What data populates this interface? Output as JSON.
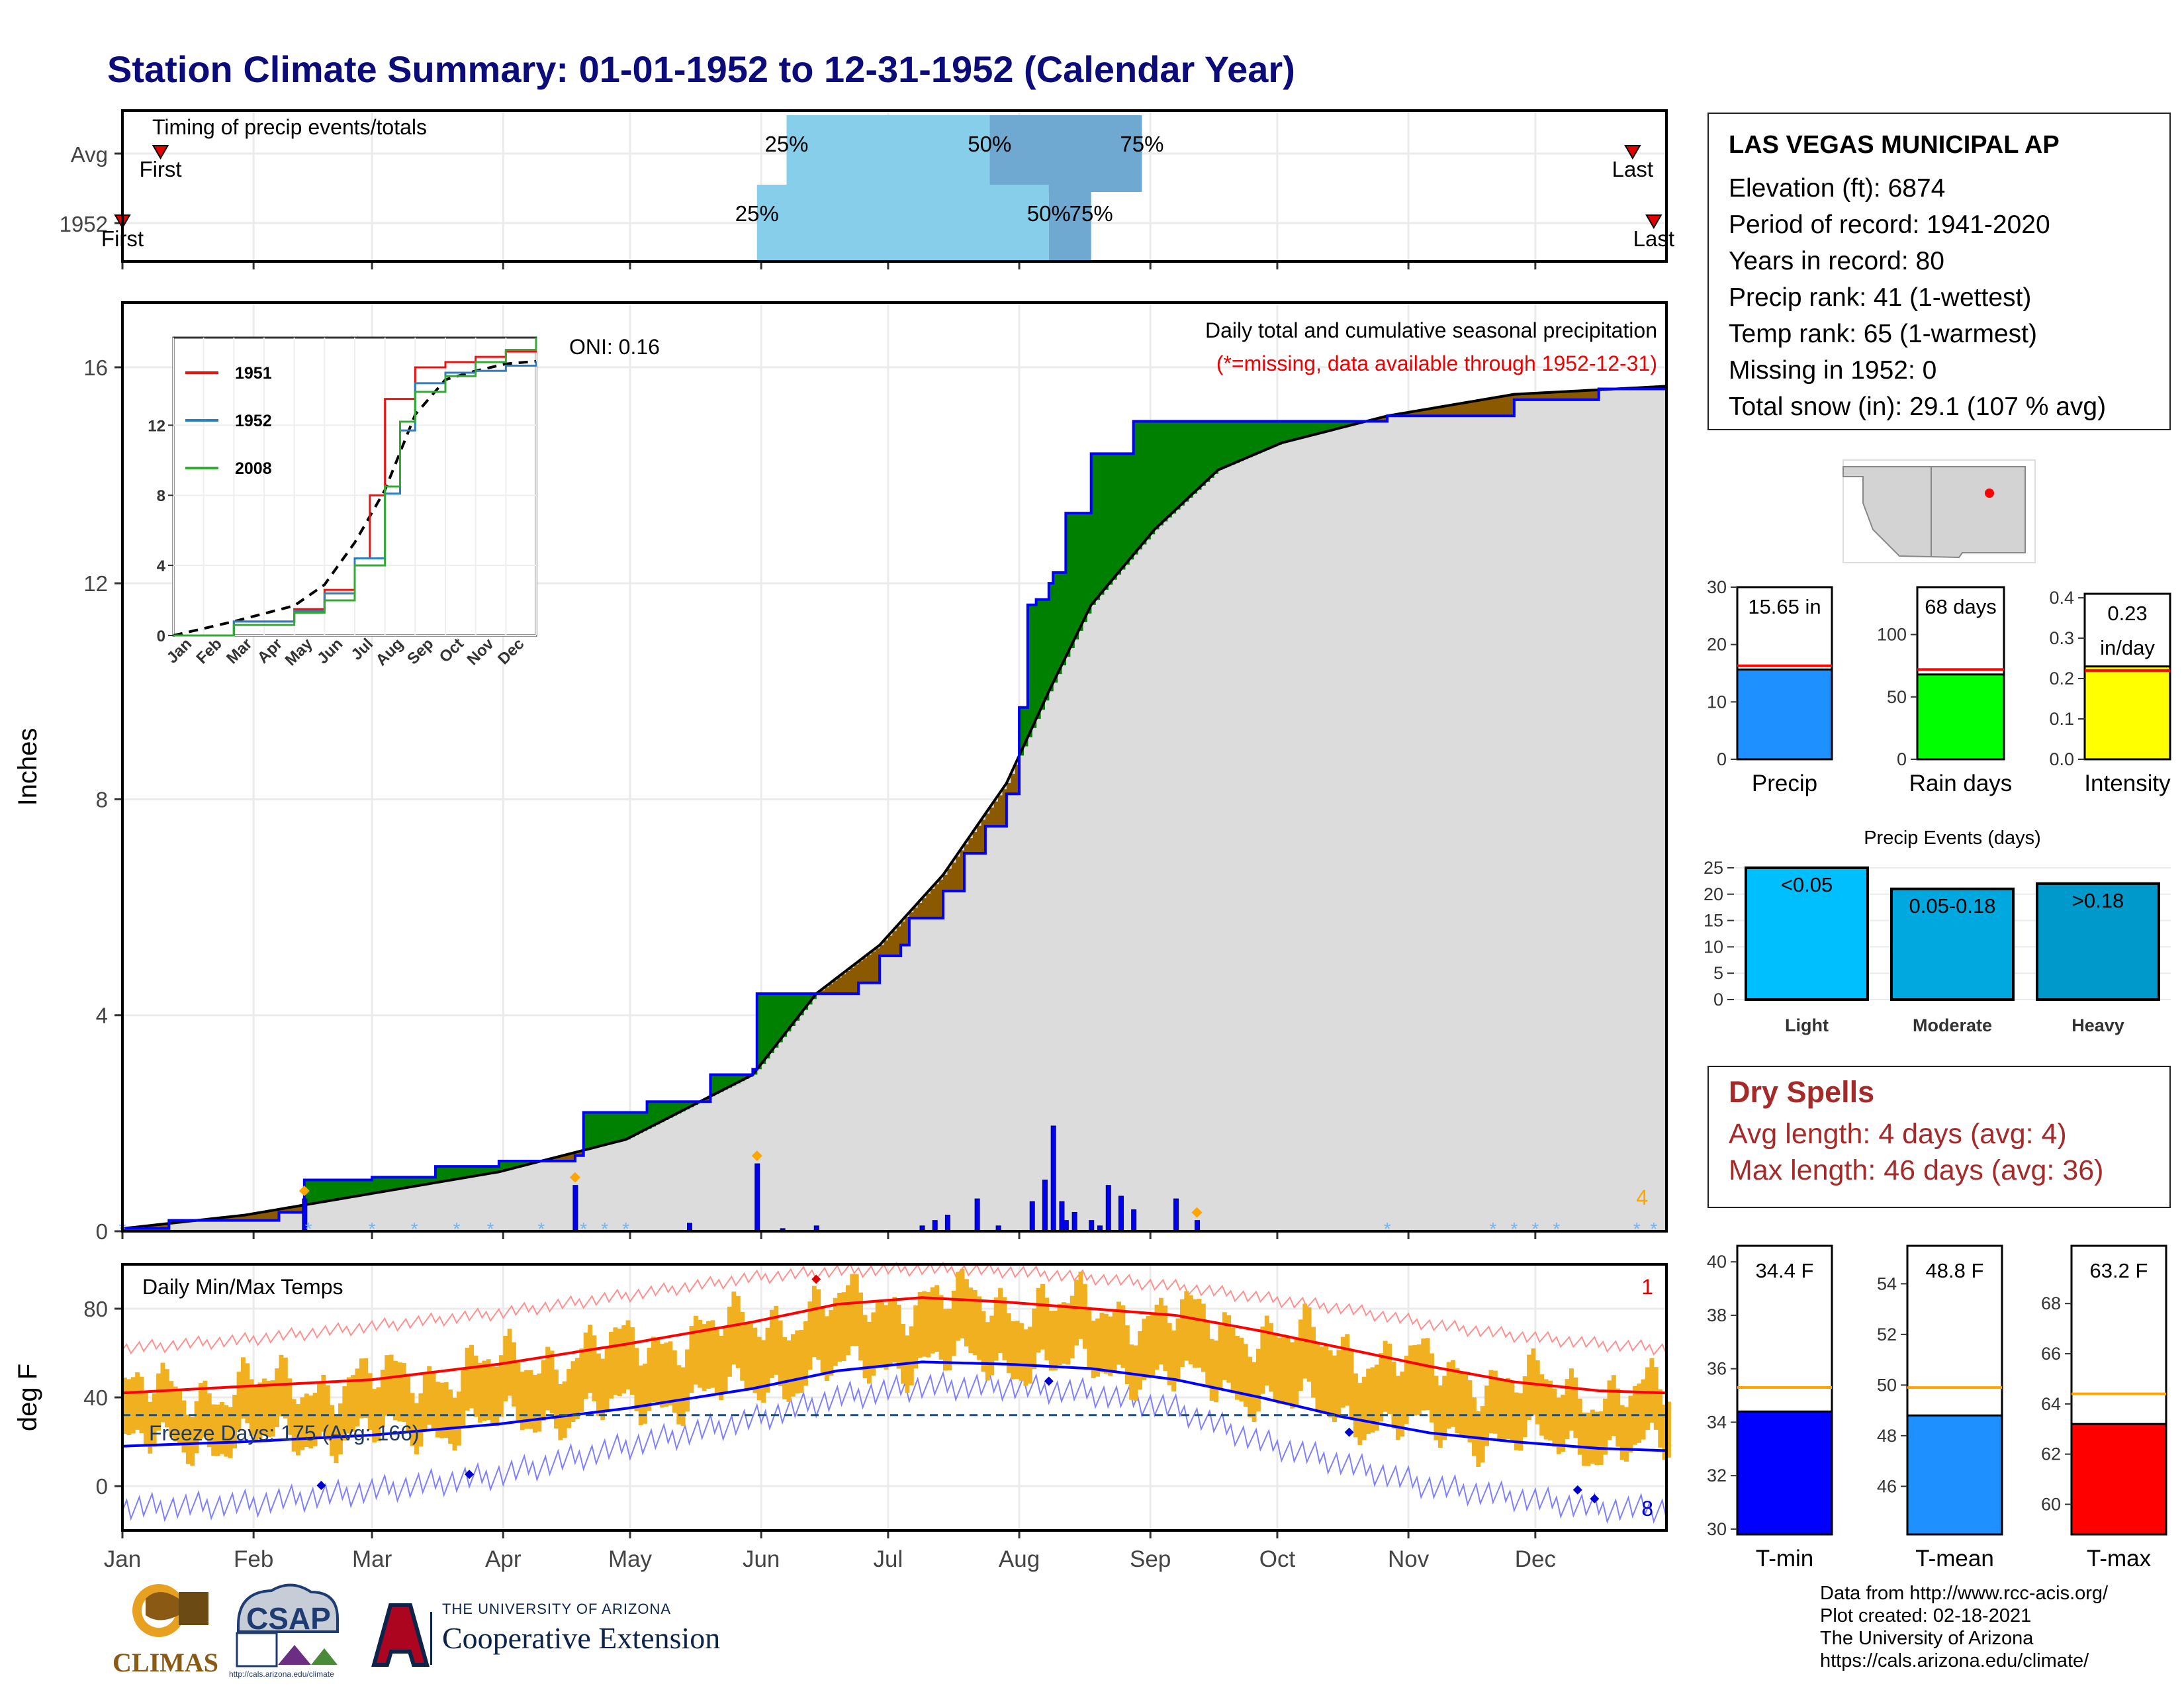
{
  "title": "Station Climate Summary: 01-01-1952 to 12-31-1952 (Calendar Year)",
  "station": {
    "name": "LAS VEGAS MUNICIPAL AP",
    "lines": [
      "Elevation (ft): 6874",
      "Period of record: 1941-2020",
      "Years in record: 80",
      "Precip rank: 41 (1-wettest)",
      "Temp rank: 65 (1-warmest)",
      "Missing in 1952: 0",
      "Total snow (in): 29.1 (107 % avg)"
    ]
  },
  "dry_spells": {
    "heading": "Dry Spells",
    "avg_length": "Avg length: 4 days (avg: 4)",
    "max_length": "Max length: 46 days (avg: 36)"
  },
  "credits": [
    "Data from http://www.rcc-acis.org/",
    "Plot created: 02-18-2021",
    "The University of Arizona",
    "https://cals.arizona.edu/climate/"
  ],
  "logos": {
    "climas": "CLIMAS",
    "csap": "CSAP",
    "csap_url": "http://cals.arizona.edu/climate",
    "coop_small": "THE UNIVERSITY OF ARIZONA",
    "coop_big": "Cooperative Extension"
  },
  "colors": {
    "title": "#0b0b7a",
    "precip_line": "#0000ff",
    "above_avg_fill": "#008000",
    "below_avg_fill": "#8b5a00",
    "climo_fill": "#dcdcdc",
    "bar_light_blue": "#87ceeb",
    "bar_mid_blue": "#6fa8d0",
    "temp_bar": "#f0b020",
    "max_line": "#ff0000",
    "min_line": "#0000ff",
    "dry_text": "#a52a2a"
  },
  "chart_data": [
    {
      "type": "bar",
      "title": "Timing of precip events/totals",
      "rows": [
        {
          "label": "Avg",
          "p25": "Jun 7",
          "p50": "Jul 25",
          "p75": "Aug 30",
          "first": "Jan 10",
          "last": "Dec 24",
          "first_label": "First",
          "last_label": "Last"
        },
        {
          "label": "1952",
          "p25": "May 31",
          "p50": "Aug 8",
          "p75": "Aug 18",
          "first": "Jan 1",
          "last": "Dec 29",
          "first_label": "First",
          "last_label": "Last"
        }
      ],
      "percentile_labels": [
        "25%",
        "50%",
        "75%"
      ],
      "x_ticks": [
        "Jan",
        "Feb",
        "Mar",
        "Apr",
        "May",
        "Jun",
        "Jul",
        "Aug",
        "Sep",
        "Oct",
        "Nov",
        "Dec"
      ]
    },
    {
      "type": "area",
      "title": "Daily total and cumulative seasonal precipitation",
      "subtitle": "(*=missing, data available through 1952-12-31)",
      "ylabel": "Inches",
      "ylim": [
        0,
        17.2
      ],
      "yticks": [
        0,
        4,
        8,
        12,
        16
      ],
      "x_ticks": [
        "Jan",
        "Feb",
        "Mar",
        "Apr",
        "May",
        "Jun",
        "Jul",
        "Aug",
        "Sep",
        "Oct",
        "Nov",
        "Dec"
      ],
      "oni": "ONI: 0.16",
      "corner_count": "4",
      "cumulative_1952": {
        "x_day": [
          1,
          12,
          38,
          44,
          60,
          75,
          90,
          108,
          110,
          125,
          135,
          140,
          150,
          151,
          165,
          175,
          180,
          185,
          187,
          195,
          200,
          205,
          210,
          213,
          215,
          217,
          220,
          221,
          224,
          230,
          240,
          250,
          270,
          300,
          330,
          350,
          366
        ],
        "y": [
          0.05,
          0.2,
          0.35,
          0.95,
          1.0,
          1.2,
          1.3,
          1.4,
          2.2,
          2.4,
          2.4,
          2.9,
          3.0,
          4.4,
          4.4,
          4.6,
          5.1,
          5.3,
          5.8,
          6.3,
          7.0,
          7.5,
          8.1,
          9.7,
          11.6,
          11.7,
          12.0,
          12.2,
          13.3,
          14.4,
          15.0,
          15.0,
          15.0,
          15.1,
          15.4,
          15.6,
          15.65
        ]
      },
      "climatology_avg": {
        "x_day": [
          1,
          30,
          60,
          90,
          120,
          150,
          165,
          180,
          195,
          210,
          220,
          230,
          245,
          260,
          275,
          300,
          330,
          366
        ],
        "y": [
          0.05,
          0.3,
          0.7,
          1.1,
          1.7,
          2.9,
          4.4,
          5.3,
          6.6,
          8.3,
          10.0,
          11.6,
          13.0,
          14.1,
          14.6,
          15.1,
          15.5,
          15.65
        ]
      },
      "daily_bars": {
        "x_day": [
          44,
          108,
          135,
          151,
          157,
          165,
          190,
          193,
          196,
          203,
          208,
          216,
          219,
          221,
          223,
          224,
          226,
          230,
          232,
          234,
          237,
          240,
          250,
          255
        ],
        "y": [
          0.6,
          0.85,
          0.15,
          1.25,
          0.05,
          0.1,
          0.1,
          0.2,
          0.3,
          0.6,
          0.1,
          0.55,
          0.95,
          1.95,
          0.55,
          0.2,
          0.35,
          0.2,
          0.1,
          0.85,
          0.65,
          0.4,
          0.6,
          0.2
        ]
      },
      "inset": {
        "type": "line",
        "yticks": [
          0,
          4,
          8,
          12
        ],
        "ylim": [
          0,
          17
        ],
        "x_ticks": [
          "Jan",
          "Feb",
          "Mar",
          "Apr",
          "May",
          "Jun",
          "Jul",
          "Aug",
          "Sep",
          "Oct",
          "Nov",
          "Dec"
        ],
        "series": [
          {
            "name": "1951",
            "color": "#ee1111",
            "x_month": [
              0,
              2,
              4,
              5,
              6,
              6.5,
              7,
              8,
              9,
              10,
              11,
              12
            ],
            "y": [
              0,
              0.8,
              1.5,
              2.6,
              4.4,
              8.0,
              13.5,
              15.3,
              15.6,
              15.9,
              16.2,
              16.5
            ]
          },
          {
            "name": "1952",
            "color": "#2f7fbf",
            "x_month": [
              0,
              2,
              4,
              5,
              6,
              7,
              7.5,
              8,
              9,
              10,
              11,
              12
            ],
            "y": [
              0,
              0.8,
              1.4,
              2.4,
              4.4,
              8.1,
              11.7,
              14.4,
              15.0,
              15.1,
              15.4,
              15.65
            ]
          },
          {
            "name": "2008",
            "color": "#33aa33",
            "x_month": [
              0,
              2,
              4,
              5,
              6,
              7,
              7.5,
              8,
              9,
              10,
              11,
              12
            ],
            "y": [
              0,
              0.6,
              1.3,
              2.0,
              4.0,
              8.5,
              12.2,
              13.9,
              14.8,
              15.6,
              16.3,
              17.0
            ]
          }
        ],
        "avg": {
          "x_month": [
            0,
            2,
            4,
            5,
            6,
            7,
            8,
            9,
            10,
            11,
            12
          ],
          "y": [
            0,
            0.8,
            1.7,
            2.9,
            5.3,
            8.3,
            12.6,
            14.6,
            15.1,
            15.5,
            15.65
          ]
        }
      }
    },
    {
      "type": "bar",
      "title": "Daily Min/Max Temps",
      "ylabel": "deg F",
      "yticks": [
        0,
        40,
        80
      ],
      "ylim": [
        -20,
        100
      ],
      "freeze_label": "Freeze Days: 175 (Avg: 166)",
      "freeze_line": 32,
      "record_highs": "1",
      "record_lows": "8",
      "x_ticks": [
        "Jan",
        "Feb",
        "Mar",
        "Apr",
        "May",
        "Jun",
        "Jul",
        "Aug",
        "Sep",
        "Oct",
        "Nov",
        "Dec"
      ],
      "normal_max": {
        "x_day": [
          1,
          30,
          60,
          90,
          120,
          150,
          170,
          190,
          210,
          230,
          250,
          270,
          290,
          310,
          330,
          350,
          366
        ],
        "y": [
          42,
          45,
          48,
          55,
          64,
          74,
          82,
          85,
          83,
          80,
          77,
          70,
          62,
          54,
          47,
          43,
          42
        ]
      },
      "normal_min": {
        "x_day": [
          1,
          30,
          60,
          90,
          120,
          150,
          170,
          190,
          210,
          230,
          250,
          270,
          290,
          310,
          330,
          350,
          366
        ],
        "y": [
          18,
          20,
          23,
          28,
          35,
          44,
          52,
          56,
          55,
          53,
          48,
          40,
          31,
          24,
          20,
          17,
          16
        ]
      },
      "record_max": {
        "x_day": [
          1,
          30,
          60,
          90,
          120,
          150,
          170,
          190,
          210,
          230,
          250,
          270,
          290,
          310,
          330,
          350,
          366
        ],
        "y": [
          62,
          66,
          72,
          78,
          86,
          94,
          97,
          98,
          97,
          94,
          90,
          85,
          80,
          73,
          68,
          64,
          62
        ]
      },
      "record_min": {
        "x_day": [
          1,
          30,
          60,
          90,
          120,
          150,
          170,
          190,
          210,
          230,
          250,
          270,
          290,
          310,
          330,
          350,
          366
        ],
        "y": [
          -10,
          -8,
          -2,
          5,
          18,
          30,
          40,
          45,
          45,
          42,
          35,
          20,
          10,
          0,
          -5,
          -10,
          -10
        ]
      }
    },
    {
      "type": "bar",
      "title": "Precip",
      "value_label": "15.65 in",
      "value": 15.65,
      "avg": 16.3,
      "yticks": [
        0,
        10,
        20,
        30
      ],
      "ylim": [
        0,
        30
      ]
    },
    {
      "type": "bar",
      "title": "Rain days",
      "value_label": "68 days",
      "value": 68,
      "avg": 72,
      "yticks": [
        0,
        50,
        100
      ],
      "ylim": [
        0,
        138
      ]
    },
    {
      "type": "bar",
      "title": "Intensity",
      "value_label_1": "0.23",
      "value_label_2": "in/day",
      "value": 0.23,
      "avg": 0.22,
      "yticks": [
        "0.0",
        "0.1",
        "0.2",
        "0.3",
        "0.4"
      ],
      "ylim": [
        0,
        0.41
      ]
    },
    {
      "type": "bar",
      "title": "Precip Events (days)",
      "categories": [
        "Light",
        "Moderate",
        "Heavy"
      ],
      "bar_labels": [
        "<0.05",
        "0.05-0.18",
        ">0.18"
      ],
      "values": [
        25,
        21,
        22
      ],
      "yticks": [
        0,
        5,
        10,
        15,
        20,
        25
      ],
      "ylim": [
        0,
        26
      ]
    },
    {
      "type": "bar",
      "title": "T-min",
      "value_label": "34.4 F",
      "value": 34.4,
      "avg": 35.3,
      "yticks": [
        30,
        32,
        34,
        36,
        38,
        40
      ],
      "ylim": [
        29.8,
        40.6
      ]
    },
    {
      "type": "bar",
      "title": "T-mean",
      "value_label": "48.8 F",
      "value": 48.8,
      "avg": 49.9,
      "yticks": [
        46,
        48,
        50,
        52,
        54
      ],
      "ylim": [
        44.1,
        55.5
      ]
    },
    {
      "type": "bar",
      "title": "T-max",
      "value_label": "63.2 F",
      "value": 63.2,
      "avg": 64.4,
      "yticks": [
        60,
        62,
        64,
        66,
        68
      ],
      "ylim": [
        58.8,
        70.3
      ]
    }
  ]
}
